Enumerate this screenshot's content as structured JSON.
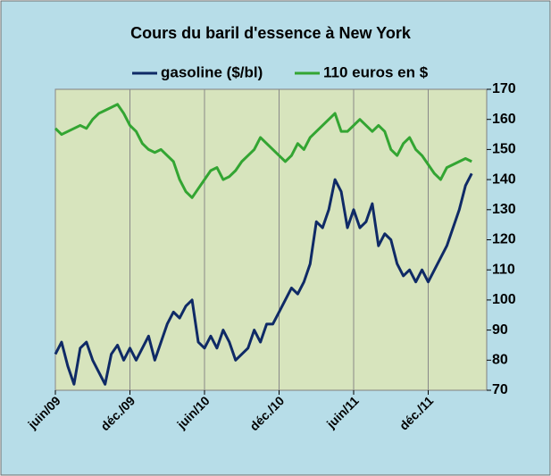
{
  "chart_data": {
    "type": "line",
    "title": "Cours du baril d'essence à New York",
    "categories": [
      "juin/09",
      null,
      null,
      null,
      null,
      null,
      null,
      null,
      null,
      null,
      null,
      null,
      "déc./09",
      null,
      null,
      null,
      null,
      null,
      null,
      null,
      null,
      null,
      null,
      null,
      "juin/10",
      null,
      null,
      null,
      null,
      null,
      null,
      null,
      null,
      null,
      null,
      null,
      "déc./10",
      null,
      null,
      null,
      null,
      null,
      null,
      null,
      null,
      null,
      null,
      null,
      "juin/11",
      null,
      null,
      null,
      null,
      null,
      null,
      null,
      null,
      null,
      null,
      null,
      "déc./11",
      null,
      null,
      null,
      null,
      null,
      null,
      null
    ],
    "series": [
      {
        "name": "gasoline ($/bl)",
        "color": "#0f2a66",
        "values": [
          82,
          86,
          78,
          72,
          84,
          86,
          80,
          76,
          72,
          82,
          85,
          80,
          84,
          80,
          84,
          88,
          80,
          86,
          92,
          96,
          94,
          98,
          100,
          86,
          84,
          88,
          84,
          90,
          86,
          80,
          82,
          84,
          90,
          86,
          92,
          92,
          96,
          100,
          104,
          102,
          106,
          112,
          126,
          124,
          130,
          140,
          136,
          124,
          130,
          124,
          126,
          132,
          118,
          122,
          120,
          112,
          108,
          110,
          106,
          110,
          106,
          110,
          114,
          118,
          124,
          130,
          138,
          142
        ]
      },
      {
        "name": "110 euros en $",
        "color": "#33a532",
        "values": [
          157,
          155,
          156,
          157,
          158,
          157,
          160,
          162,
          163,
          164,
          165,
          162,
          158,
          156,
          152,
          150,
          149,
          150,
          148,
          146,
          140,
          136,
          134,
          137,
          140,
          143,
          144,
          140,
          141,
          143,
          146,
          148,
          150,
          154,
          152,
          150,
          148,
          146,
          148,
          152,
          150,
          154,
          156,
          158,
          160,
          162,
          156,
          156,
          158,
          160,
          158,
          156,
          158,
          156,
          150,
          148,
          152,
          154,
          150,
          148,
          145,
          142,
          140,
          144,
          145,
          146,
          147,
          146
        ]
      }
    ],
    "ylim": [
      70,
      170
    ],
    "yticks": [
      70,
      80,
      90,
      100,
      110,
      120,
      130,
      140,
      150,
      160,
      170
    ],
    "grid": "x",
    "legend": "top"
  }
}
